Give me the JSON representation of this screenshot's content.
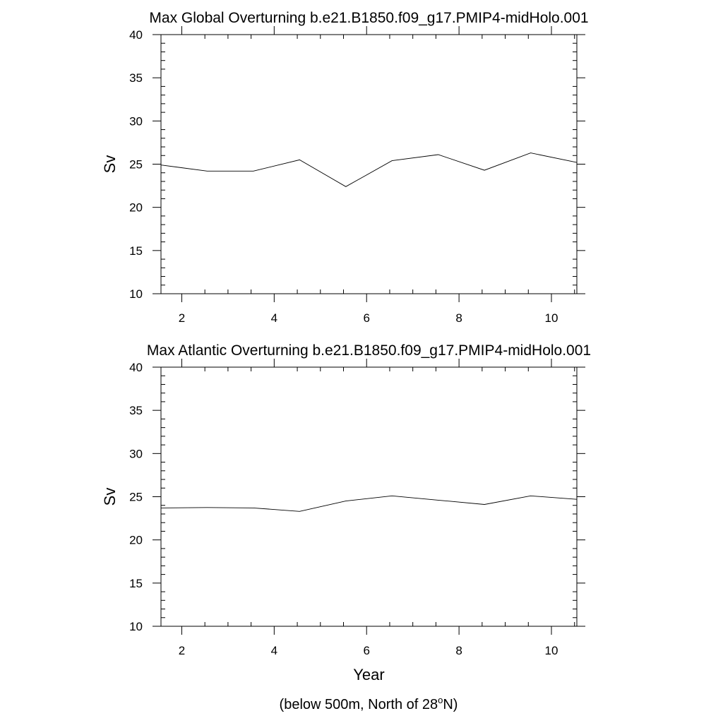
{
  "figure": {
    "footnote_main": "(below 500m, North of 28",
    "footnote_sup": "o",
    "footnote_end": "N)"
  },
  "chart_data": [
    {
      "type": "line",
      "title": "Max Global Overturning b.e21.B1850.f09_g17.PMIP4-midHolo.001",
      "xlabel": "",
      "ylabel": "Sv",
      "xlim": [
        1.55,
        10.55
      ],
      "ylim": [
        10,
        40
      ],
      "xticks": [
        2,
        4,
        6,
        8,
        10
      ],
      "yticks": [
        10,
        15,
        20,
        25,
        30,
        35,
        40
      ],
      "grid": false,
      "series": [
        {
          "x": [
            1.55,
            2.55,
            3.55,
            4.55,
            5.55,
            6.55,
            7.55,
            8.55,
            9.55,
            10.55
          ],
          "y": [
            24.9,
            24.2,
            24.2,
            25.5,
            22.4,
            25.4,
            26.1,
            24.3,
            26.3,
            25.2
          ],
          "color": "#000000"
        }
      ]
    },
    {
      "type": "line",
      "title": "Max Atlantic Overturning b.e21.B1850.f09_g17.PMIP4-midHolo.001",
      "xlabel": "Year",
      "ylabel": "Sv",
      "xlim": [
        1.55,
        10.55
      ],
      "ylim": [
        10,
        40
      ],
      "xticks": [
        2,
        4,
        6,
        8,
        10
      ],
      "yticks": [
        10,
        15,
        20,
        25,
        30,
        35,
        40
      ],
      "grid": false,
      "series": [
        {
          "x": [
            1.55,
            2.55,
            3.55,
            4.55,
            5.55,
            6.55,
            7.55,
            8.55,
            9.55,
            10.55
          ],
          "y": [
            23.7,
            23.75,
            23.7,
            23.3,
            24.5,
            25.1,
            24.6,
            24.1,
            25.1,
            24.7
          ],
          "color": "#000000"
        }
      ]
    }
  ]
}
